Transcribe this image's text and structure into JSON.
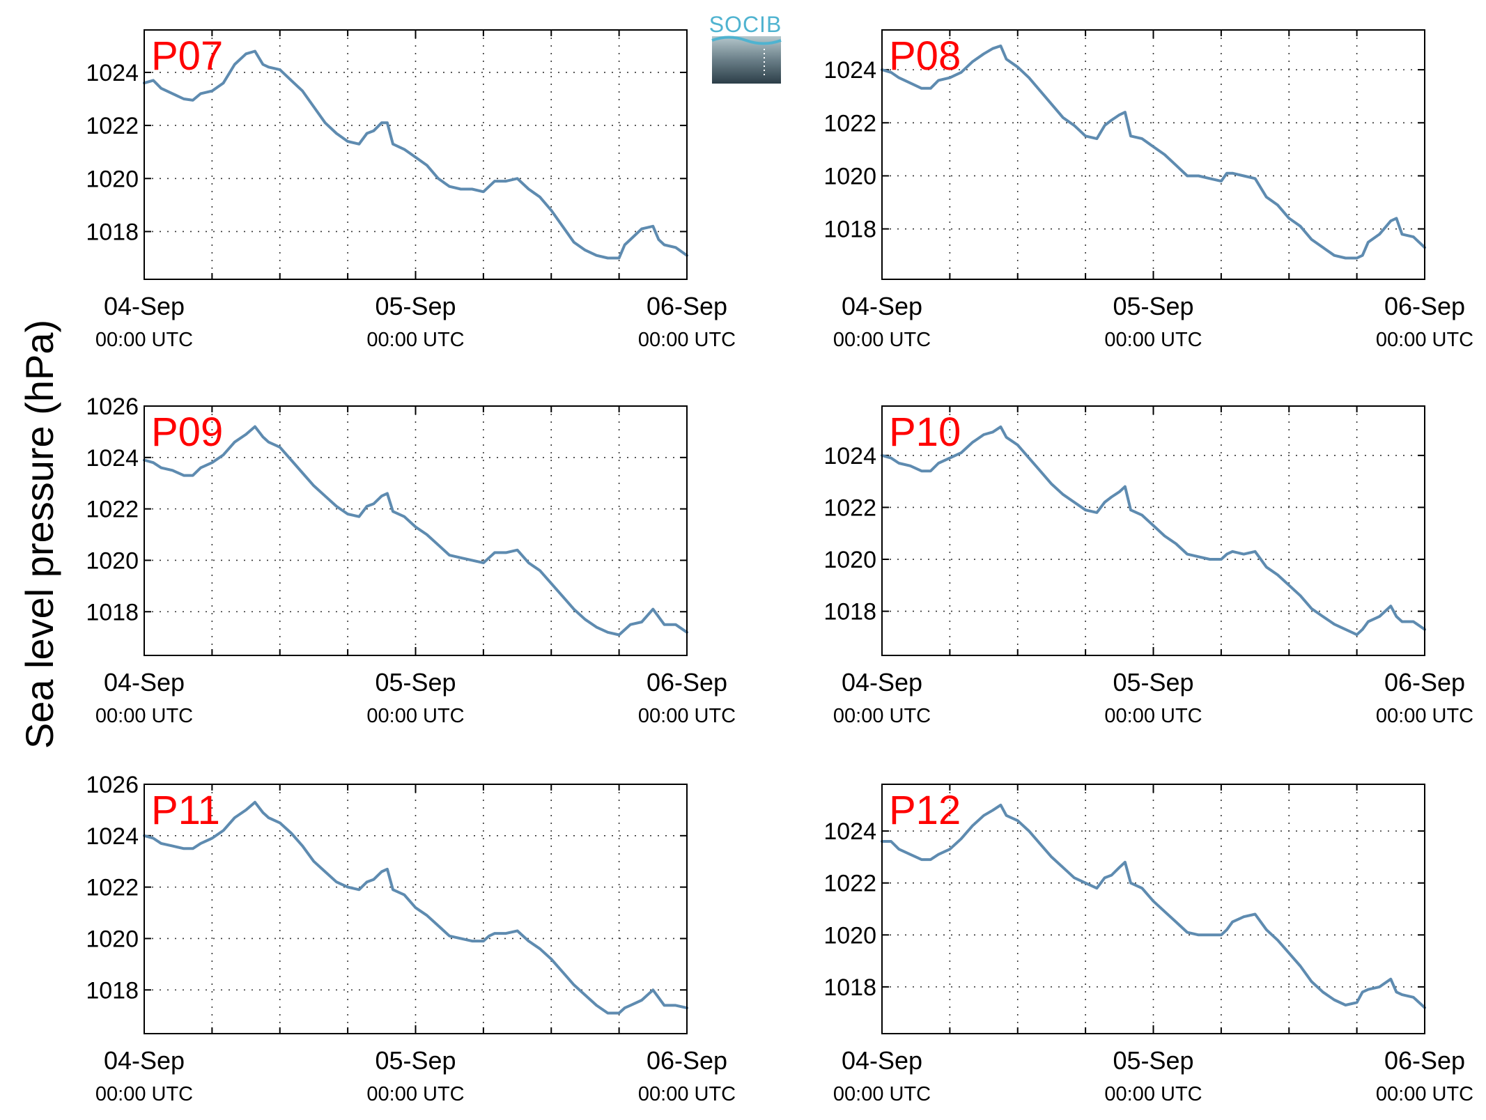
{
  "figure": {
    "ylabel": "Sea level pressure (hPa)",
    "logo_text": "SOCIB",
    "series_color": "#5e8bb0",
    "label_color": "#ff0000",
    "logo_color": "#4fb3d0"
  },
  "chart_data": [
    {
      "type": "line",
      "label": "P07",
      "x_ticks": [
        {
          "date": "04-Sep",
          "time": "00:00 UTC"
        },
        {
          "date": "05-Sep",
          "time": "00:00 UTC"
        },
        {
          "date": "06-Sep",
          "time": "00:00 UTC"
        }
      ],
      "xlim_hours": [
        0,
        48
      ],
      "ylim": [
        1016.2,
        1025.6
      ],
      "yticks": [
        1018,
        1020,
        1022,
        1024
      ],
      "grid": true,
      "series": [
        {
          "hours": [
            0,
            0.8,
            1.5,
            2.5,
            3.5,
            4.3,
            5,
            6,
            7,
            8,
            9,
            9.8,
            10.5,
            11,
            12,
            13,
            14,
            15,
            16,
            17,
            18,
            19,
            19.7,
            20.3,
            21,
            21.5,
            22,
            23,
            24,
            25,
            26,
            27,
            28,
            29,
            30,
            30.5,
            31,
            32,
            33,
            34,
            35,
            36,
            37,
            38,
            39,
            40,
            41,
            42,
            42.5,
            43,
            44,
            45,
            45.5,
            46,
            47,
            48
          ],
          "values": [
            1023.6,
            1023.7,
            1023.4,
            1023.2,
            1023.0,
            1022.95,
            1023.2,
            1023.3,
            1023.6,
            1024.3,
            1024.7,
            1024.8,
            1024.3,
            1024.2,
            1024.1,
            1023.7,
            1023.3,
            1022.7,
            1022.1,
            1021.7,
            1021.4,
            1021.3,
            1021.7,
            1021.8,
            1022.1,
            1022.1,
            1021.3,
            1021.1,
            1020.8,
            1020.5,
            1020.0,
            1019.7,
            1019.6,
            1019.6,
            1019.5,
            1019.7,
            1019.9,
            1019.9,
            1020.0,
            1019.6,
            1019.3,
            1018.8,
            1018.2,
            1017.6,
            1017.3,
            1017.1,
            1017.0,
            1017.0,
            1017.5,
            1017.7,
            1018.1,
            1018.2,
            1017.7,
            1017.5,
            1017.4,
            1017.1
          ]
        }
      ]
    },
    {
      "type": "line",
      "label": "P08",
      "x_ticks": [
        {
          "date": "04-Sep",
          "time": "00:00 UTC"
        },
        {
          "date": "05-Sep",
          "time": "00:00 UTC"
        },
        {
          "date": "06-Sep",
          "time": "00:00 UTC"
        }
      ],
      "xlim_hours": [
        0,
        48
      ],
      "ylim": [
        1016.1,
        1025.5
      ],
      "yticks": [
        1018,
        1020,
        1022,
        1024
      ],
      "grid": true,
      "series": [
        {
          "hours": [
            0,
            0.8,
            1.5,
            2.5,
            3.5,
            4.3,
            5,
            6,
            7,
            8,
            9,
            9.8,
            10.5,
            11,
            12,
            13,
            14,
            15,
            16,
            17,
            18,
            19,
            19.7,
            20.3,
            21,
            21.5,
            22,
            23,
            24,
            25,
            26,
            27,
            28,
            29,
            30,
            30.5,
            31,
            32,
            33,
            34,
            35,
            36,
            37,
            38,
            39,
            40,
            41,
            42,
            42.5,
            43,
            44,
            45,
            45.5,
            46,
            47,
            48
          ],
          "values": [
            1024.0,
            1023.9,
            1023.7,
            1023.5,
            1023.3,
            1023.3,
            1023.6,
            1023.7,
            1023.9,
            1024.3,
            1024.6,
            1024.8,
            1024.9,
            1024.4,
            1024.1,
            1023.7,
            1023.2,
            1022.7,
            1022.2,
            1021.9,
            1021.5,
            1021.4,
            1021.9,
            1022.1,
            1022.3,
            1022.4,
            1021.5,
            1021.4,
            1021.1,
            1020.8,
            1020.4,
            1020.0,
            1020.0,
            1019.9,
            1019.8,
            1020.1,
            1020.1,
            1020.0,
            1019.9,
            1019.2,
            1018.9,
            1018.4,
            1018.1,
            1017.6,
            1017.3,
            1017.0,
            1016.9,
            1016.9,
            1017.0,
            1017.5,
            1017.8,
            1018.3,
            1018.4,
            1017.8,
            1017.7,
            1017.3
          ]
        }
      ]
    },
    {
      "type": "line",
      "label": "P09",
      "x_ticks": [
        {
          "date": "04-Sep",
          "time": "00:00 UTC"
        },
        {
          "date": "05-Sep",
          "time": "00:00 UTC"
        },
        {
          "date": "06-Sep",
          "time": "00:00 UTC"
        }
      ],
      "xlim_hours": [
        0,
        48
      ],
      "ylim": [
        1016.3,
        1026.0
      ],
      "yticks": [
        1018,
        1020,
        1022,
        1024,
        1026
      ],
      "grid": true,
      "series": [
        {
          "hours": [
            0,
            0.8,
            1.5,
            2.5,
            3.5,
            4.3,
            5,
            6,
            7,
            8,
            9,
            9.8,
            10.5,
            11,
            12,
            13,
            14,
            15,
            16,
            17,
            18,
            19,
            19.7,
            20.3,
            21,
            21.5,
            22,
            23,
            24,
            25,
            26,
            27,
            28,
            29,
            30,
            30.5,
            31,
            32,
            33,
            34,
            35,
            36,
            37,
            38,
            39,
            40,
            41,
            42,
            42.5,
            43,
            44,
            45,
            45.5,
            46,
            47,
            48
          ],
          "values": [
            1023.9,
            1023.8,
            1023.6,
            1023.5,
            1023.3,
            1023.3,
            1023.6,
            1023.8,
            1024.1,
            1024.6,
            1024.9,
            1025.2,
            1024.8,
            1024.6,
            1024.4,
            1023.9,
            1023.4,
            1022.9,
            1022.5,
            1022.1,
            1021.8,
            1021.7,
            1022.1,
            1022.2,
            1022.5,
            1022.6,
            1021.9,
            1021.7,
            1021.3,
            1021.0,
            1020.6,
            1020.2,
            1020.1,
            1020.0,
            1019.9,
            1020.1,
            1020.3,
            1020.3,
            1020.4,
            1019.9,
            1019.6,
            1019.1,
            1018.6,
            1018.1,
            1017.7,
            1017.4,
            1017.2,
            1017.1,
            1017.3,
            1017.5,
            1017.6,
            1018.1,
            1017.8,
            1017.5,
            1017.5,
            1017.2
          ]
        }
      ]
    },
    {
      "type": "line",
      "label": "P10",
      "x_ticks": [
        {
          "date": "04-Sep",
          "time": "00:00 UTC"
        },
        {
          "date": "05-Sep",
          "time": "00:00 UTC"
        },
        {
          "date": "06-Sep",
          "time": "00:00 UTC"
        }
      ],
      "xlim_hours": [
        0,
        48
      ],
      "ylim": [
        1016.3,
        1025.9
      ],
      "yticks": [
        1018,
        1020,
        1022,
        1024
      ],
      "grid": true,
      "series": [
        {
          "hours": [
            0,
            0.8,
            1.5,
            2.5,
            3.5,
            4.3,
            5,
            6,
            7,
            8,
            9,
            9.8,
            10.5,
            11,
            12,
            13,
            14,
            15,
            16,
            17,
            18,
            19,
            19.7,
            20.3,
            21,
            21.5,
            22,
            23,
            24,
            25,
            26,
            27,
            28,
            29,
            30,
            30.5,
            31,
            32,
            33,
            34,
            35,
            36,
            37,
            38,
            39,
            40,
            41,
            42,
            42.5,
            43,
            44,
            45,
            45.5,
            46,
            47,
            48
          ],
          "values": [
            1024.0,
            1023.9,
            1023.7,
            1023.6,
            1023.4,
            1023.4,
            1023.7,
            1023.9,
            1024.1,
            1024.5,
            1024.8,
            1024.9,
            1025.1,
            1024.7,
            1024.4,
            1023.9,
            1023.4,
            1022.9,
            1022.5,
            1022.2,
            1021.9,
            1021.8,
            1022.2,
            1022.4,
            1022.6,
            1022.8,
            1021.9,
            1021.7,
            1021.3,
            1020.9,
            1020.6,
            1020.2,
            1020.1,
            1020.0,
            1020.0,
            1020.2,
            1020.3,
            1020.2,
            1020.3,
            1019.7,
            1019.4,
            1019.0,
            1018.6,
            1018.1,
            1017.8,
            1017.5,
            1017.3,
            1017.1,
            1017.3,
            1017.6,
            1017.8,
            1018.2,
            1017.8,
            1017.6,
            1017.6,
            1017.3
          ]
        }
      ]
    },
    {
      "type": "line",
      "label": "P11",
      "x_ticks": [
        {
          "date": "04-Sep",
          "time": "00:00 UTC"
        },
        {
          "date": "05-Sep",
          "time": "00:00 UTC"
        },
        {
          "date": "06-Sep",
          "time": "00:00 UTC"
        }
      ],
      "xlim_hours": [
        0,
        48
      ],
      "ylim": [
        1016.3,
        1026.0
      ],
      "yticks": [
        1018,
        1020,
        1022,
        1024,
        1026
      ],
      "grid": true,
      "series": [
        {
          "hours": [
            0,
            0.8,
            1.5,
            2.5,
            3.5,
            4.3,
            5,
            6,
            7,
            8,
            9,
            9.8,
            10.5,
            11,
            12,
            13,
            14,
            15,
            16,
            17,
            18,
            19,
            19.7,
            20.3,
            21,
            21.5,
            22,
            23,
            24,
            25,
            26,
            27,
            28,
            29,
            30,
            30.5,
            31,
            32,
            33,
            34,
            35,
            36,
            37,
            38,
            39,
            40,
            41,
            42,
            42.5,
            43,
            44,
            45,
            45.5,
            46,
            47,
            48
          ],
          "values": [
            1024.0,
            1023.9,
            1023.7,
            1023.6,
            1023.5,
            1023.5,
            1023.7,
            1023.9,
            1024.2,
            1024.7,
            1025.0,
            1025.3,
            1024.9,
            1024.7,
            1024.5,
            1024.1,
            1023.6,
            1023.0,
            1022.6,
            1022.2,
            1022.0,
            1021.9,
            1022.2,
            1022.3,
            1022.6,
            1022.7,
            1021.9,
            1021.7,
            1021.2,
            1020.9,
            1020.5,
            1020.1,
            1020.0,
            1019.9,
            1019.9,
            1020.1,
            1020.2,
            1020.2,
            1020.3,
            1019.9,
            1019.6,
            1019.2,
            1018.7,
            1018.2,
            1017.8,
            1017.4,
            1017.1,
            1017.1,
            1017.3,
            1017.4,
            1017.6,
            1018.0,
            1017.7,
            1017.4,
            1017.4,
            1017.3
          ]
        }
      ]
    },
    {
      "type": "line",
      "label": "P12",
      "x_ticks": [
        {
          "date": "04-Sep",
          "time": "00:00 UTC"
        },
        {
          "date": "05-Sep",
          "time": "00:00 UTC"
        },
        {
          "date": "06-Sep",
          "time": "00:00 UTC"
        }
      ],
      "xlim_hours": [
        0,
        48
      ],
      "ylim": [
        1016.2,
        1025.8
      ],
      "yticks": [
        1018,
        1020,
        1022,
        1024
      ],
      "grid": true,
      "series": [
        {
          "hours": [
            0,
            0.8,
            1.5,
            2.5,
            3.5,
            4.3,
            5,
            6,
            7,
            8,
            9,
            9.8,
            10.5,
            11,
            12,
            13,
            14,
            15,
            16,
            17,
            18,
            19,
            19.7,
            20.3,
            21,
            21.5,
            22,
            23,
            24,
            25,
            26,
            27,
            28,
            29,
            30,
            30.5,
            31,
            32,
            33,
            34,
            35,
            36,
            37,
            38,
            39,
            40,
            41,
            42,
            42.5,
            43,
            44,
            45,
            45.5,
            46,
            47,
            48
          ],
          "values": [
            1023.6,
            1023.6,
            1023.3,
            1023.1,
            1022.9,
            1022.9,
            1023.1,
            1023.3,
            1023.7,
            1024.2,
            1024.6,
            1024.8,
            1025.0,
            1024.6,
            1024.4,
            1024.0,
            1023.5,
            1023.0,
            1022.6,
            1022.2,
            1022.0,
            1021.8,
            1022.2,
            1022.3,
            1022.6,
            1022.8,
            1022.0,
            1021.8,
            1021.3,
            1020.9,
            1020.5,
            1020.1,
            1020.0,
            1020.0,
            1020.0,
            1020.2,
            1020.5,
            1020.7,
            1020.8,
            1020.2,
            1019.8,
            1019.3,
            1018.8,
            1018.2,
            1017.8,
            1017.5,
            1017.3,
            1017.4,
            1017.8,
            1017.9,
            1018.0,
            1018.3,
            1017.8,
            1017.7,
            1017.6,
            1017.2
          ]
        }
      ]
    }
  ]
}
